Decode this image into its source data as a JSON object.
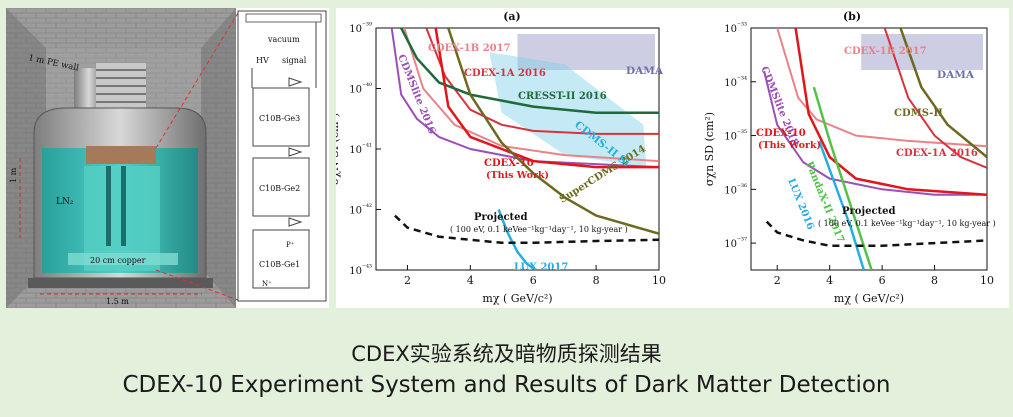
{
  "page": {
    "caption_zh": "CDEX实验系统及暗物质探测结果",
    "caption_en": "CDEX-10 Experiment System and Results of Dark Matter Detection",
    "background_color": "#e3f0dc"
  },
  "detector": {
    "pe_wall_label": "1 m PE wall",
    "ln2_label": "LN₂",
    "copper_label": "20 cm copper",
    "width_label": "1.5 m",
    "height_label": "1 m",
    "vacuum_label": "vacuum",
    "hv_label": "HV",
    "signal_label": "signal",
    "ge_labels": [
      "C10B-Ge3",
      "C10B-Ge2",
      "C10B-Ge1"
    ],
    "p_plus_label": "P⁺",
    "n_plus_label": "N⁺"
  },
  "chart_data": [
    {
      "panel_label": "(a)",
      "type": "line",
      "xlabel": "mχ ( GeV/c²)",
      "ylabel": "σχN SI (cm²)",
      "xlim": [
        1,
        10
      ],
      "ylim_log10": [
        -43,
        -39
      ],
      "y_scale": "log",
      "x_ticks": [
        2,
        4,
        6,
        8,
        10
      ],
      "y_tick_labels": [
        "10⁻³⁹",
        "10⁻⁴⁰",
        "10⁻⁴¹",
        "10⁻⁴²",
        "10⁻⁴³"
      ],
      "series": [
        {
          "name": "CDEX-1B 2017",
          "color": "#e8838a",
          "width": 2,
          "x": [
            1.9,
            2.5,
            3.5,
            5,
            7,
            10
          ],
          "y_log10": [
            -39.0,
            -40.0,
            -40.6,
            -40.95,
            -41.1,
            -41.2
          ]
        },
        {
          "name": "CDEX-1A 2016",
          "color": "#d8333b",
          "width": 2,
          "x": [
            2.6,
            3.2,
            4,
            5,
            6,
            8,
            10
          ],
          "y_log10": [
            -39.0,
            -39.8,
            -40.35,
            -40.6,
            -40.7,
            -40.75,
            -40.75
          ]
        },
        {
          "name": "CDMSlite 2016",
          "color": "#9b4fb5",
          "width": 2,
          "x": [
            1.5,
            1.8,
            2.3,
            3,
            4,
            6,
            8,
            10
          ],
          "y_log10": [
            -39.0,
            -40.1,
            -40.5,
            -40.8,
            -41.0,
            -41.2,
            -41.25,
            -41.3
          ]
        },
        {
          "name": "CRESST-II 2016",
          "color": "#1f6a3a",
          "width": 2.5,
          "x": [
            1.8,
            2.3,
            3,
            4,
            6,
            8,
            10
          ],
          "y_log10": [
            -39.0,
            -39.5,
            -39.9,
            -40.1,
            -40.3,
            -40.4,
            -40.4
          ]
        },
        {
          "name": "CDEX-10 (This Work)",
          "color": "#e0161b",
          "width": 2.5,
          "x": [
            2.9,
            3.3,
            4,
            5,
            6,
            8,
            10
          ],
          "y_log10": [
            -39.0,
            -40.3,
            -40.8,
            -41.0,
            -41.2,
            -41.3,
            -41.3
          ]
        },
        {
          "name": "SuperCDMS 2014",
          "color": "#6b6a1f",
          "width": 2.5,
          "x": [
            3.3,
            4,
            5,
            6,
            7,
            8,
            10
          ],
          "y_log10": [
            -39.0,
            -40.1,
            -40.9,
            -41.4,
            -41.8,
            -42.1,
            -42.4
          ]
        },
        {
          "name": "LUX 2017",
          "color": "#27aee0",
          "width": 2.5,
          "x": [
            4.9,
            5.2,
            5.5,
            5.8,
            6.1
          ],
          "y_log10": [
            -42.0,
            -42.4,
            -42.7,
            -42.9,
            -43.0
          ]
        },
        {
          "name": "Projected",
          "color": "#111111",
          "width": 2.5,
          "dash": true,
          "x": [
            1.6,
            2,
            3,
            4,
            5,
            6,
            8,
            10
          ],
          "y_log10": [
            -42.1,
            -42.3,
            -42.45,
            -42.5,
            -42.55,
            -42.55,
            -42.52,
            -42.5
          ]
        }
      ],
      "regions": [
        {
          "name": "DAMA",
          "color": "#6f6fb0"
        },
        {
          "name": "CDMS-II Si",
          "color": "#7fd0e8"
        }
      ],
      "projected_note": "( 100 eV, 0.1 keVee⁻¹kg⁻¹day⁻¹, 10 kg-year )"
    },
    {
      "panel_label": "(b)",
      "type": "line",
      "xlabel": "mχ ( GeV/c²)",
      "ylabel": "σχn SD (cm²)",
      "xlim": [
        1,
        10
      ],
      "ylim_log10": [
        -37.5,
        -33
      ],
      "y_scale": "log",
      "x_ticks": [
        2,
        4,
        6,
        8,
        10
      ],
      "y_tick_labels": [
        "10⁻³³",
        "10⁻³⁴",
        "10⁻³⁵",
        "10⁻³⁶",
        "10⁻³⁷"
      ],
      "series": [
        {
          "name": "CDEX-1B 2017",
          "color": "#e8838a",
          "width": 2,
          "x": [
            2.0,
            2.8,
            3.5,
            5,
            7,
            10
          ],
          "y_log10": [
            -33.0,
            -34.3,
            -34.7,
            -35.0,
            -35.1,
            -35.2
          ]
        },
        {
          "name": "CDMSlite 2018",
          "color": "#9b4fb5",
          "width": 2,
          "x": [
            1.5,
            2,
            3,
            4,
            6,
            8,
            10
          ],
          "y_log10": [
            -33.8,
            -34.8,
            -35.5,
            -35.8,
            -36.0,
            -36.1,
            -36.1
          ]
        },
        {
          "name": "CDEX-1A 2016",
          "color": "#d8333b",
          "width": 2,
          "x": [
            6.1,
            7,
            8,
            9,
            10
          ],
          "y_log10": [
            -33.0,
            -34.3,
            -35.0,
            -35.4,
            -35.6
          ]
        },
        {
          "name": "CDMS-II",
          "color": "#6b6a1f",
          "width": 2.5,
          "x": [
            6.7,
            7.5,
            8.5,
            10
          ],
          "y_log10": [
            -33.0,
            -34.1,
            -34.8,
            -35.4
          ]
        },
        {
          "name": "CDEX-10 (This Work)",
          "color": "#e0161b",
          "width": 2.5,
          "x": [
            2.7,
            3.2,
            4,
            5,
            7,
            10
          ],
          "y_log10": [
            -33.0,
            -34.6,
            -35.4,
            -35.8,
            -36.0,
            -36.1
          ]
        },
        {
          "name": "PandaX-II 2017",
          "color": "#52c24a",
          "width": 2.5,
          "x": [
            3.4,
            4,
            4.6,
            5.2,
            5.6
          ],
          "y_log10": [
            -34.1,
            -35.1,
            -36.0,
            -36.9,
            -37.5
          ]
        },
        {
          "name": "LUX 2016",
          "color": "#27aee0",
          "width": 2.5,
          "x": [
            3.6,
            4.2,
            4.8,
            5.3
          ],
          "y_log10": [
            -35.1,
            -35.9,
            -36.7,
            -37.5
          ]
        },
        {
          "name": "Projected",
          "color": "#111111",
          "width": 2.5,
          "dash": true,
          "x": [
            1.6,
            2,
            3,
            4,
            6,
            8,
            10
          ],
          "y_log10": [
            -36.6,
            -36.8,
            -36.95,
            -37.05,
            -37.05,
            -37.0,
            -36.95
          ]
        }
      ],
      "regions": [
        {
          "name": "DAMA",
          "color": "#6f6fb0"
        }
      ],
      "projected_note": "( 100 eV, 0.1 keVee⁻¹kg⁻¹day⁻¹, 10 kg-year )"
    }
  ]
}
